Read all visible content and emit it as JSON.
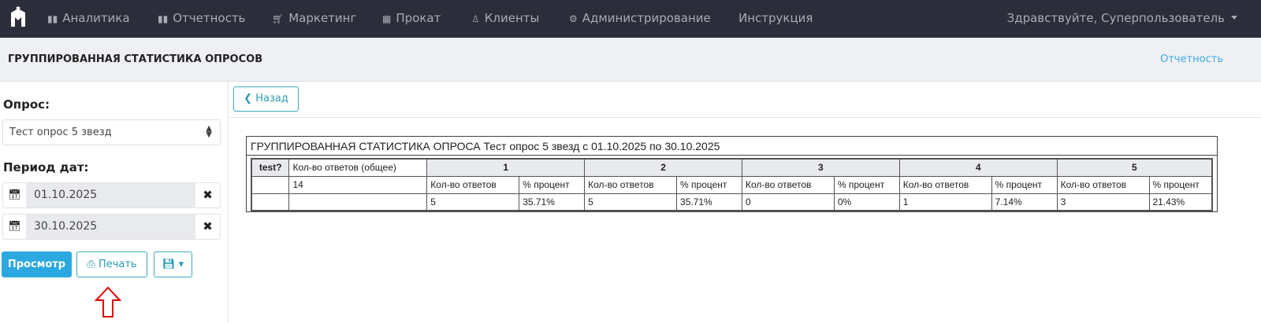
{
  "nav": {
    "items": [
      {
        "label": "Аналитика",
        "icon": "bar-chart-icon"
      },
      {
        "label": "Отчетность",
        "icon": "bar-chart-icon"
      },
      {
        "label": "Маркетинг",
        "icon": "cart-icon"
      },
      {
        "label": "Прокат",
        "icon": "film-icon"
      },
      {
        "label": "Клиенты",
        "icon": "user-icon"
      },
      {
        "label": "Администрирование",
        "icon": "gears-icon"
      },
      {
        "label": "Инструкция",
        "icon": ""
      }
    ],
    "greeting": "Здравствуйте, Суперпользователь"
  },
  "header": {
    "title": "ГРУППИРОВАННАЯ СТАТИСТИКА ОПРОСОВ",
    "link": "Отчетность"
  },
  "sidebar": {
    "survey_label": "Опрос:",
    "survey_value": "Тест опрос 5 звезд",
    "period_label": "Период дат:",
    "date_from": "01.10.2025",
    "date_to": "30.10.2025",
    "view_btn": "Просмотр",
    "print_btn": "Печать"
  },
  "main": {
    "back_btn": "Назад",
    "report_title": "ГРУППИРОВАННАЯ СТАТИСТИКА ОПРОСА Тест опрос 5 звезд с 01.10.2025 по 30.10.2025",
    "col_test": "test?",
    "col_total": "Кол-во ответов (общее)",
    "total": "14",
    "sub_count": "Кол-во ответов",
    "sub_pct": "% процент",
    "groups": [
      {
        "label": "1",
        "count": "5",
        "pct": "35.71%"
      },
      {
        "label": "2",
        "count": "5",
        "pct": "35.71%"
      },
      {
        "label": "3",
        "count": "0",
        "pct": "0%"
      },
      {
        "label": "4",
        "count": "1",
        "pct": "7.14%"
      },
      {
        "label": "5",
        "count": "3",
        "pct": "21.43%"
      }
    ]
  },
  "colors": {
    "nav_bg": "#2b2d3b",
    "accent": "#2ca8e0",
    "annotation_arrow": "#e00000"
  }
}
